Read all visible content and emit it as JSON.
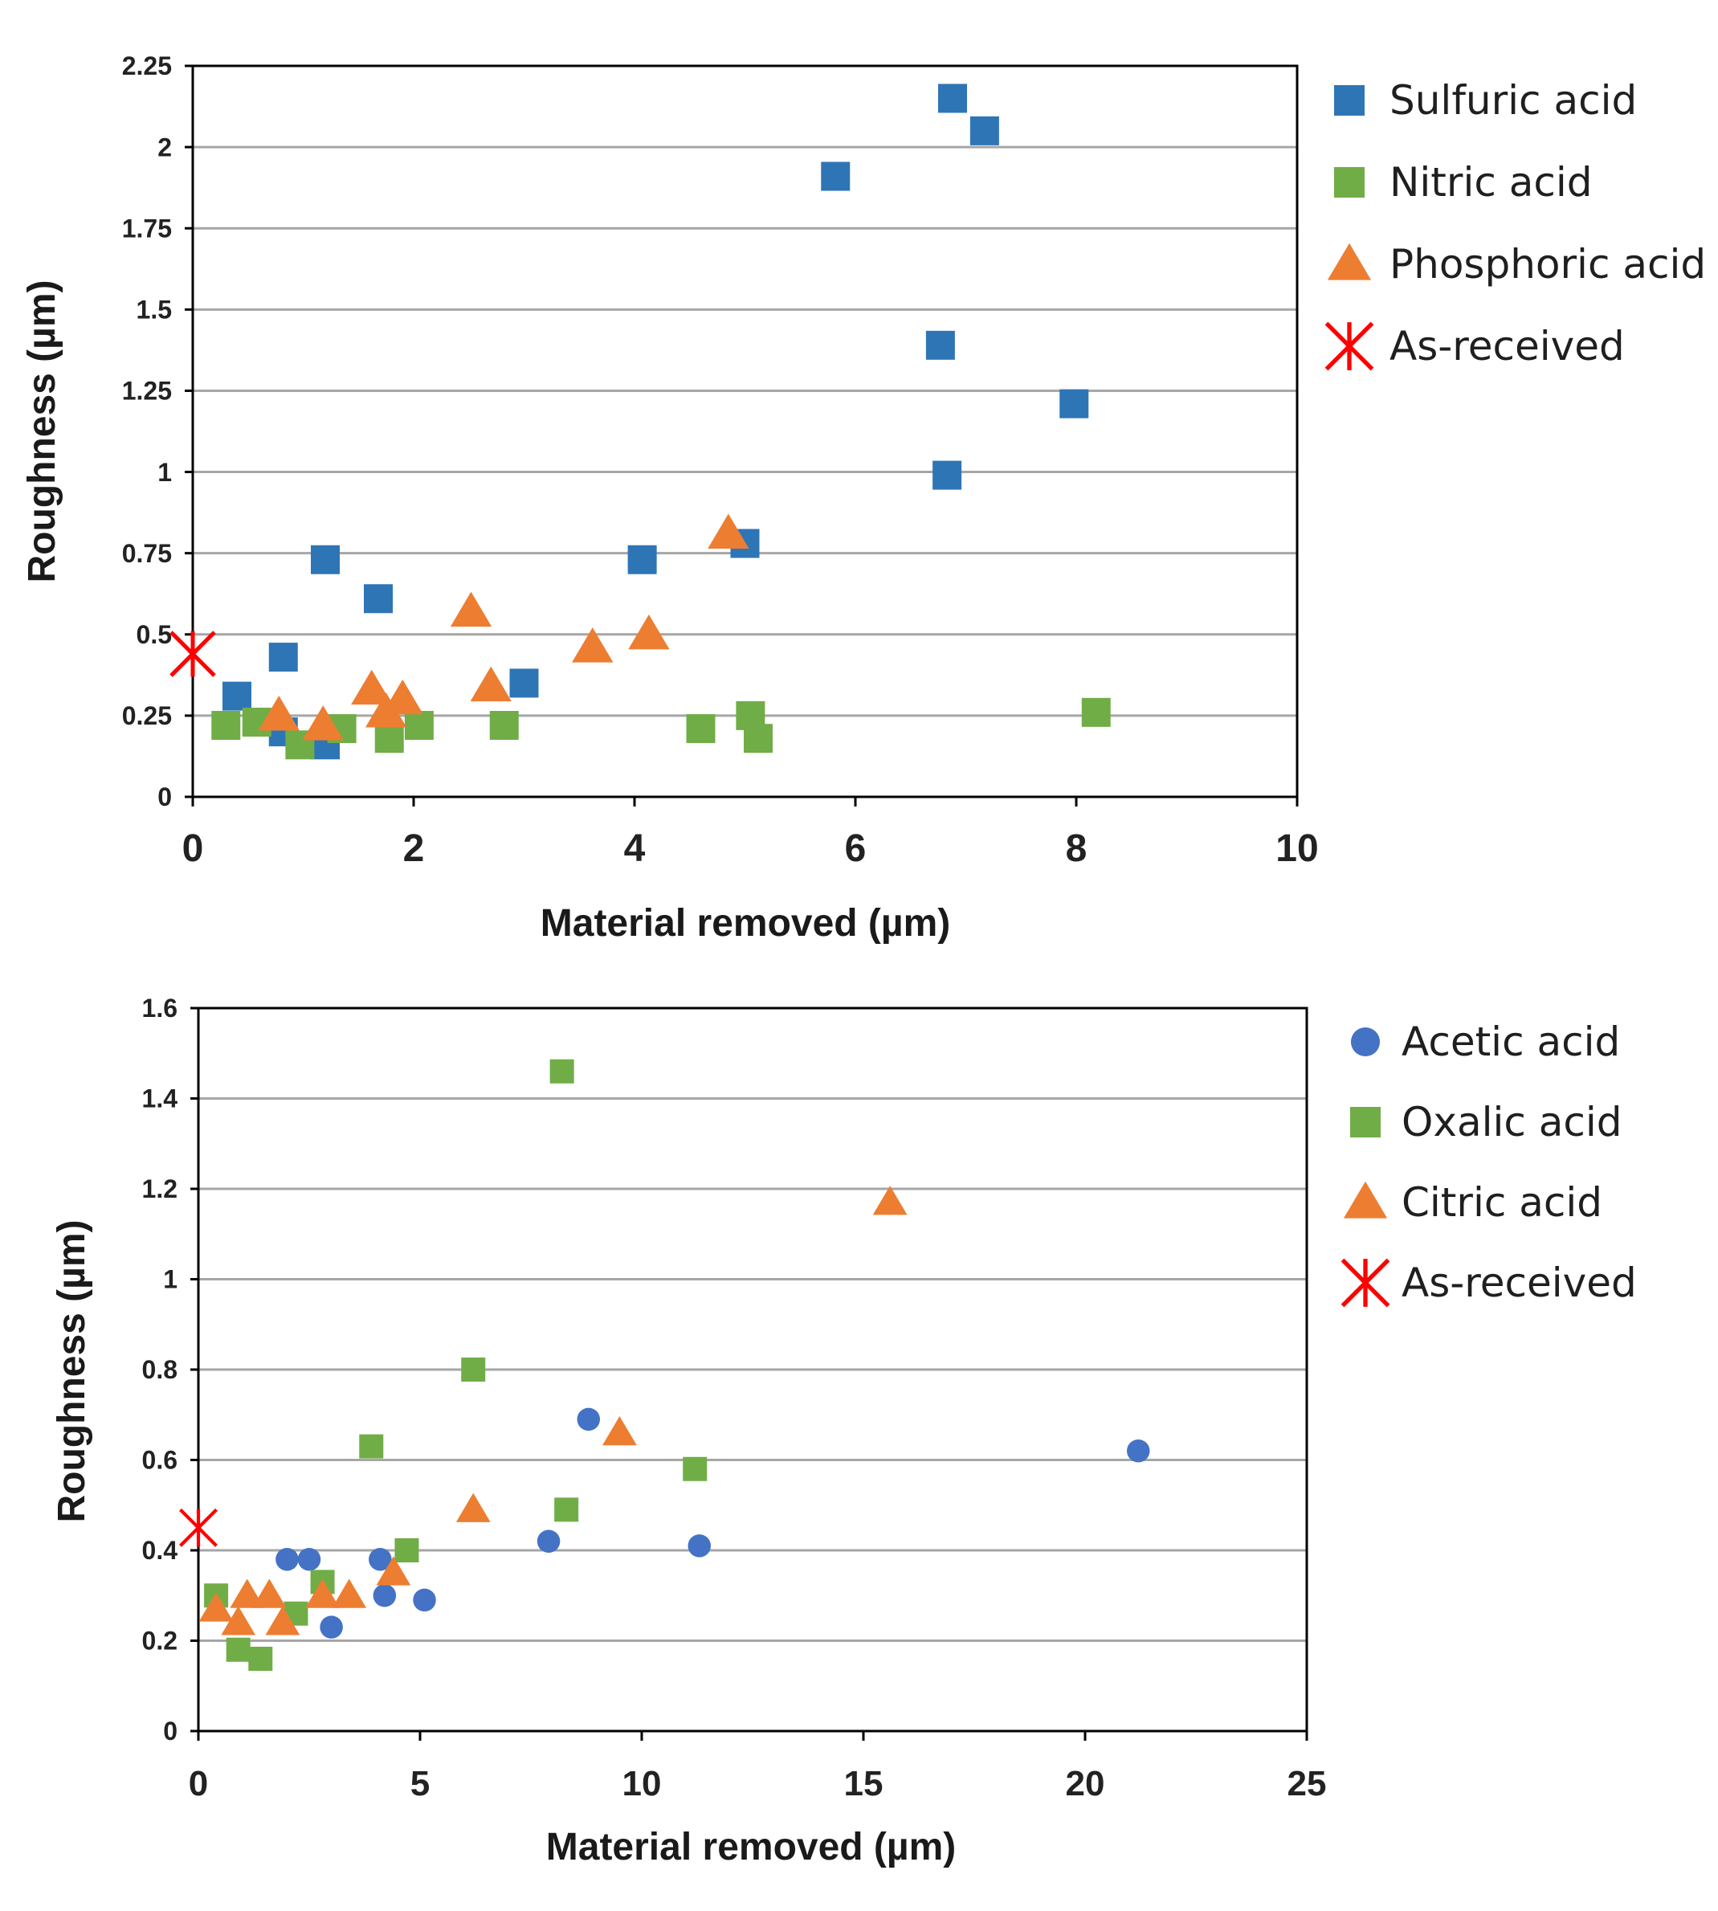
{
  "chart_data": [
    {
      "type": "scatter",
      "title": "",
      "xlabel": "Material removed (µm)",
      "ylabel": "Roughness (µm)",
      "xlim": [
        0,
        10
      ],
      "ylim": [
        0,
        2.25
      ],
      "grid": true,
      "legend": "right",
      "xticks": [
        "0",
        "2",
        "4",
        "6",
        "8",
        "10"
      ],
      "yticks": [
        "0",
        "0.25",
        "0.5",
        "0.75",
        "1",
        "1.25",
        "1.5",
        "1.75",
        "2",
        "2.25"
      ],
      "series": [
        {
          "name": "Sulfuric acid",
          "marker": "square",
          "color": "#2e75b6",
          "points": [
            [
              0.4,
              0.31
            ],
            [
              0.82,
              0.43
            ],
            [
              0.82,
              0.2
            ],
            [
              1.2,
              0.16
            ],
            [
              1.2,
              0.73
            ],
            [
              1.68,
              0.61
            ],
            [
              3.0,
              0.35
            ],
            [
              4.07,
              0.73
            ],
            [
              5.0,
              0.78
            ],
            [
              5.82,
              1.91
            ],
            [
              6.77,
              1.39
            ],
            [
              6.83,
              0.99
            ],
            [
              6.88,
              2.15
            ],
            [
              7.17,
              2.05
            ],
            [
              7.98,
              1.21
            ]
          ]
        },
        {
          "name": "Nitric acid",
          "marker": "square",
          "color": "#70ad47",
          "points": [
            [
              0.3,
              0.22
            ],
            [
              0.58,
              0.23
            ],
            [
              0.97,
              0.16
            ],
            [
              1.35,
              0.21
            ],
            [
              1.78,
              0.18
            ],
            [
              2.05,
              0.22
            ],
            [
              2.82,
              0.22
            ],
            [
              4.6,
              0.21
            ],
            [
              5.05,
              0.25
            ],
            [
              5.12,
              0.18
            ],
            [
              8.18,
              0.26
            ]
          ]
        },
        {
          "name": "Phosphoric acid",
          "marker": "triangle",
          "color": "#ed7d31",
          "points": [
            [
              0.78,
              0.25
            ],
            [
              1.18,
              0.22
            ],
            [
              1.62,
              0.33
            ],
            [
              1.75,
              0.26
            ],
            [
              1.9,
              0.3
            ],
            [
              2.52,
              0.57
            ],
            [
              2.7,
              0.34
            ],
            [
              3.62,
              0.46
            ],
            [
              4.13,
              0.5
            ],
            [
              4.85,
              0.81
            ]
          ]
        },
        {
          "name": "As-received",
          "marker": "asterisk",
          "color": "#ff0000",
          "points": [
            [
              0.0,
              0.44
            ]
          ]
        }
      ]
    },
    {
      "type": "scatter",
      "title": "",
      "xlabel": "Material removed (µm)",
      "ylabel": "Roughness (µm)",
      "xlim": [
        0,
        25
      ],
      "ylim": [
        0,
        1.6
      ],
      "grid": true,
      "legend": "right",
      "xticks": [
        "0",
        "5",
        "10",
        "15",
        "20",
        "25"
      ],
      "yticks": [
        "0",
        "0.2",
        "0.4",
        "0.6",
        "0.8",
        "1",
        "1.2",
        "1.4",
        "1.6"
      ],
      "series": [
        {
          "name": "Acetic acid",
          "marker": "circle",
          "color": "#4472c4",
          "points": [
            [
              2.0,
              0.38
            ],
            [
              2.5,
              0.38
            ],
            [
              3.0,
              0.23
            ],
            [
              4.1,
              0.38
            ],
            [
              4.2,
              0.3
            ],
            [
              5.1,
              0.29
            ],
            [
              7.9,
              0.42
            ],
            [
              8.8,
              0.69
            ],
            [
              11.3,
              0.41
            ],
            [
              21.2,
              0.62
            ]
          ]
        },
        {
          "name": "Oxalic acid",
          "marker": "square",
          "color": "#70ad47",
          "points": [
            [
              0.4,
              0.3
            ],
            [
              0.9,
              0.18
            ],
            [
              1.4,
              0.16
            ],
            [
              2.2,
              0.26
            ],
            [
              2.8,
              0.33
            ],
            [
              3.9,
              0.63
            ],
            [
              4.7,
              0.4
            ],
            [
              6.2,
              0.8
            ],
            [
              8.2,
              1.46
            ],
            [
              8.3,
              0.49
            ],
            [
              11.2,
              0.58
            ]
          ]
        },
        {
          "name": "Citric acid",
          "marker": "triangle",
          "color": "#ed7d31",
          "points": [
            [
              0.4,
              0.27
            ],
            [
              0.9,
              0.24
            ],
            [
              1.1,
              0.3
            ],
            [
              1.6,
              0.3
            ],
            [
              1.9,
              0.24
            ],
            [
              2.8,
              0.3
            ],
            [
              3.4,
              0.3
            ],
            [
              4.4,
              0.35
            ],
            [
              6.2,
              0.49
            ],
            [
              9.5,
              0.66
            ],
            [
              15.6,
              1.17
            ]
          ]
        },
        {
          "name": "As-received",
          "marker": "asterisk",
          "color": "#ff0000",
          "points": [
            [
              0.0,
              0.45
            ]
          ]
        }
      ]
    }
  ]
}
